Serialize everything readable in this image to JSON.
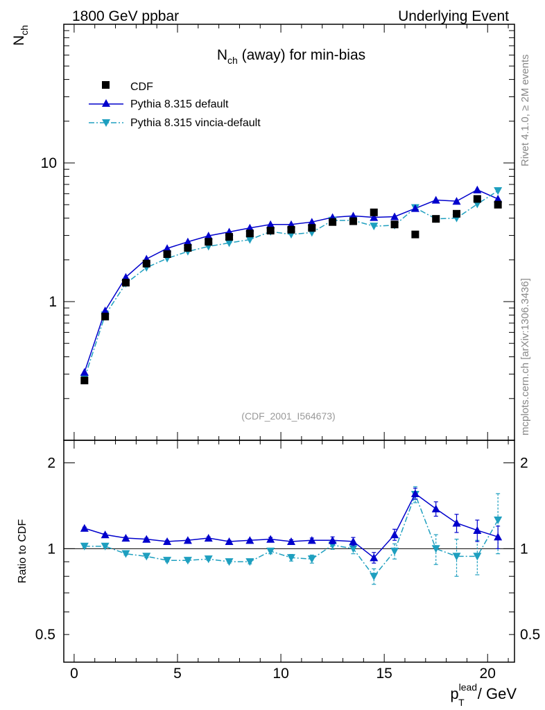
{
  "header": {
    "left": "1800 GeV ppbar",
    "right": "Underlying Event"
  },
  "side_labels": {
    "rivet": "Rivet 4.1.0, ≥ 2M events",
    "mcplots": "mcplots.cern.ch [arXiv:1306.3436]"
  },
  "chart_data": {
    "type": "scatter",
    "title": "N",
    "title_sub": "ch",
    "title_rest": " (away) for min-bias",
    "analysis_id": "(CDF_2001_I564673)",
    "ylabel_main": "N",
    "ylabel_main_sub": "ch",
    "ylabel_ratio": "Ratio to CDF",
    "xlabel_base": "p",
    "xlabel_sub": "T",
    "xlabel_sup": "lead",
    "xlabel_rest": " / GeV",
    "xlim": [
      -0.5,
      21.3
    ],
    "ylim_main": [
      0.1,
      100
    ],
    "yscale_main": "log",
    "ylim_ratio": [
      0.4,
      2.4
    ],
    "yscale_ratio": "log",
    "x_ticks": [
      0,
      5,
      10,
      15,
      20
    ],
    "x_tick_labels": [
      "0",
      "5",
      "10",
      "15",
      "20"
    ],
    "y_main_ticks": [
      1,
      10
    ],
    "y_main_tick_labels": [
      "1",
      "10"
    ],
    "y_ratio_ticks": [
      0.5,
      1,
      2
    ],
    "y_ratio_tick_labels": [
      "0.5",
      "1",
      "2"
    ],
    "legend_position": "top-left",
    "x": [
      0.5,
      1.5,
      2.5,
      3.5,
      4.5,
      5.5,
      6.5,
      7.5,
      8.5,
      9.5,
      10.5,
      11.5,
      12.5,
      13.5,
      14.5,
      15.5,
      16.5,
      17.5,
      18.5,
      19.5,
      20.5
    ],
    "series": [
      {
        "name": "CDF",
        "color": "#000000",
        "marker": "square",
        "values": [
          0.27,
          0.78,
          1.37,
          1.88,
          2.2,
          2.44,
          2.7,
          2.93,
          3.1,
          3.25,
          3.3,
          3.4,
          3.75,
          3.8,
          4.4,
          3.6,
          3.05,
          3.95,
          4.3,
          5.5,
          5.0
        ]
      },
      {
        "name": "Pythia 8.315 default",
        "color": "#0000cc",
        "marker": "triangle-up",
        "line": "solid",
        "values": [
          0.31,
          0.86,
          1.5,
          2.03,
          2.42,
          2.7,
          2.98,
          3.18,
          3.4,
          3.6,
          3.6,
          3.75,
          4.05,
          4.15,
          4.05,
          4.1,
          4.7,
          5.4,
          5.3,
          6.4,
          5.5
        ],
        "ratio": [
          1.18,
          1.12,
          1.09,
          1.08,
          1.06,
          1.07,
          1.09,
          1.06,
          1.07,
          1.08,
          1.06,
          1.07,
          1.07,
          1.06,
          0.93,
          1.12,
          1.56,
          1.38,
          1.23,
          1.16,
          1.1
        ],
        "ratio_err": [
          0.01,
          0.01,
          0.01,
          0.01,
          0.01,
          0.01,
          0.01,
          0.01,
          0.01,
          0.015,
          0.015,
          0.02,
          0.03,
          0.035,
          0.04,
          0.05,
          0.07,
          0.08,
          0.09,
          0.1,
          0.1
        ]
      },
      {
        "name": "Pythia 8.315 vincia-default",
        "color": "#1e9fbf",
        "marker": "triangle-down",
        "line": "dash-dot",
        "values": [
          0.28,
          0.8,
          1.35,
          1.76,
          2.05,
          2.3,
          2.5,
          2.65,
          2.8,
          3.2,
          3.05,
          3.15,
          3.85,
          3.85,
          3.5,
          3.55,
          4.75,
          3.95,
          4.0,
          5.05,
          6.3
        ],
        "ratio": [
          1.02,
          1.02,
          0.96,
          0.94,
          0.91,
          0.91,
          0.92,
          0.9,
          0.9,
          0.98,
          0.93,
          0.92,
          1.03,
          1.0,
          0.8,
          0.98,
          1.55,
          1.0,
          0.94,
          0.94,
          1.26
        ],
        "ratio_err": [
          0.01,
          0.01,
          0.01,
          0.01,
          0.01,
          0.01,
          0.01,
          0.01,
          0.015,
          0.02,
          0.025,
          0.03,
          0.035,
          0.04,
          0.05,
          0.06,
          0.1,
          0.12,
          0.14,
          0.13,
          0.3
        ]
      }
    ]
  }
}
